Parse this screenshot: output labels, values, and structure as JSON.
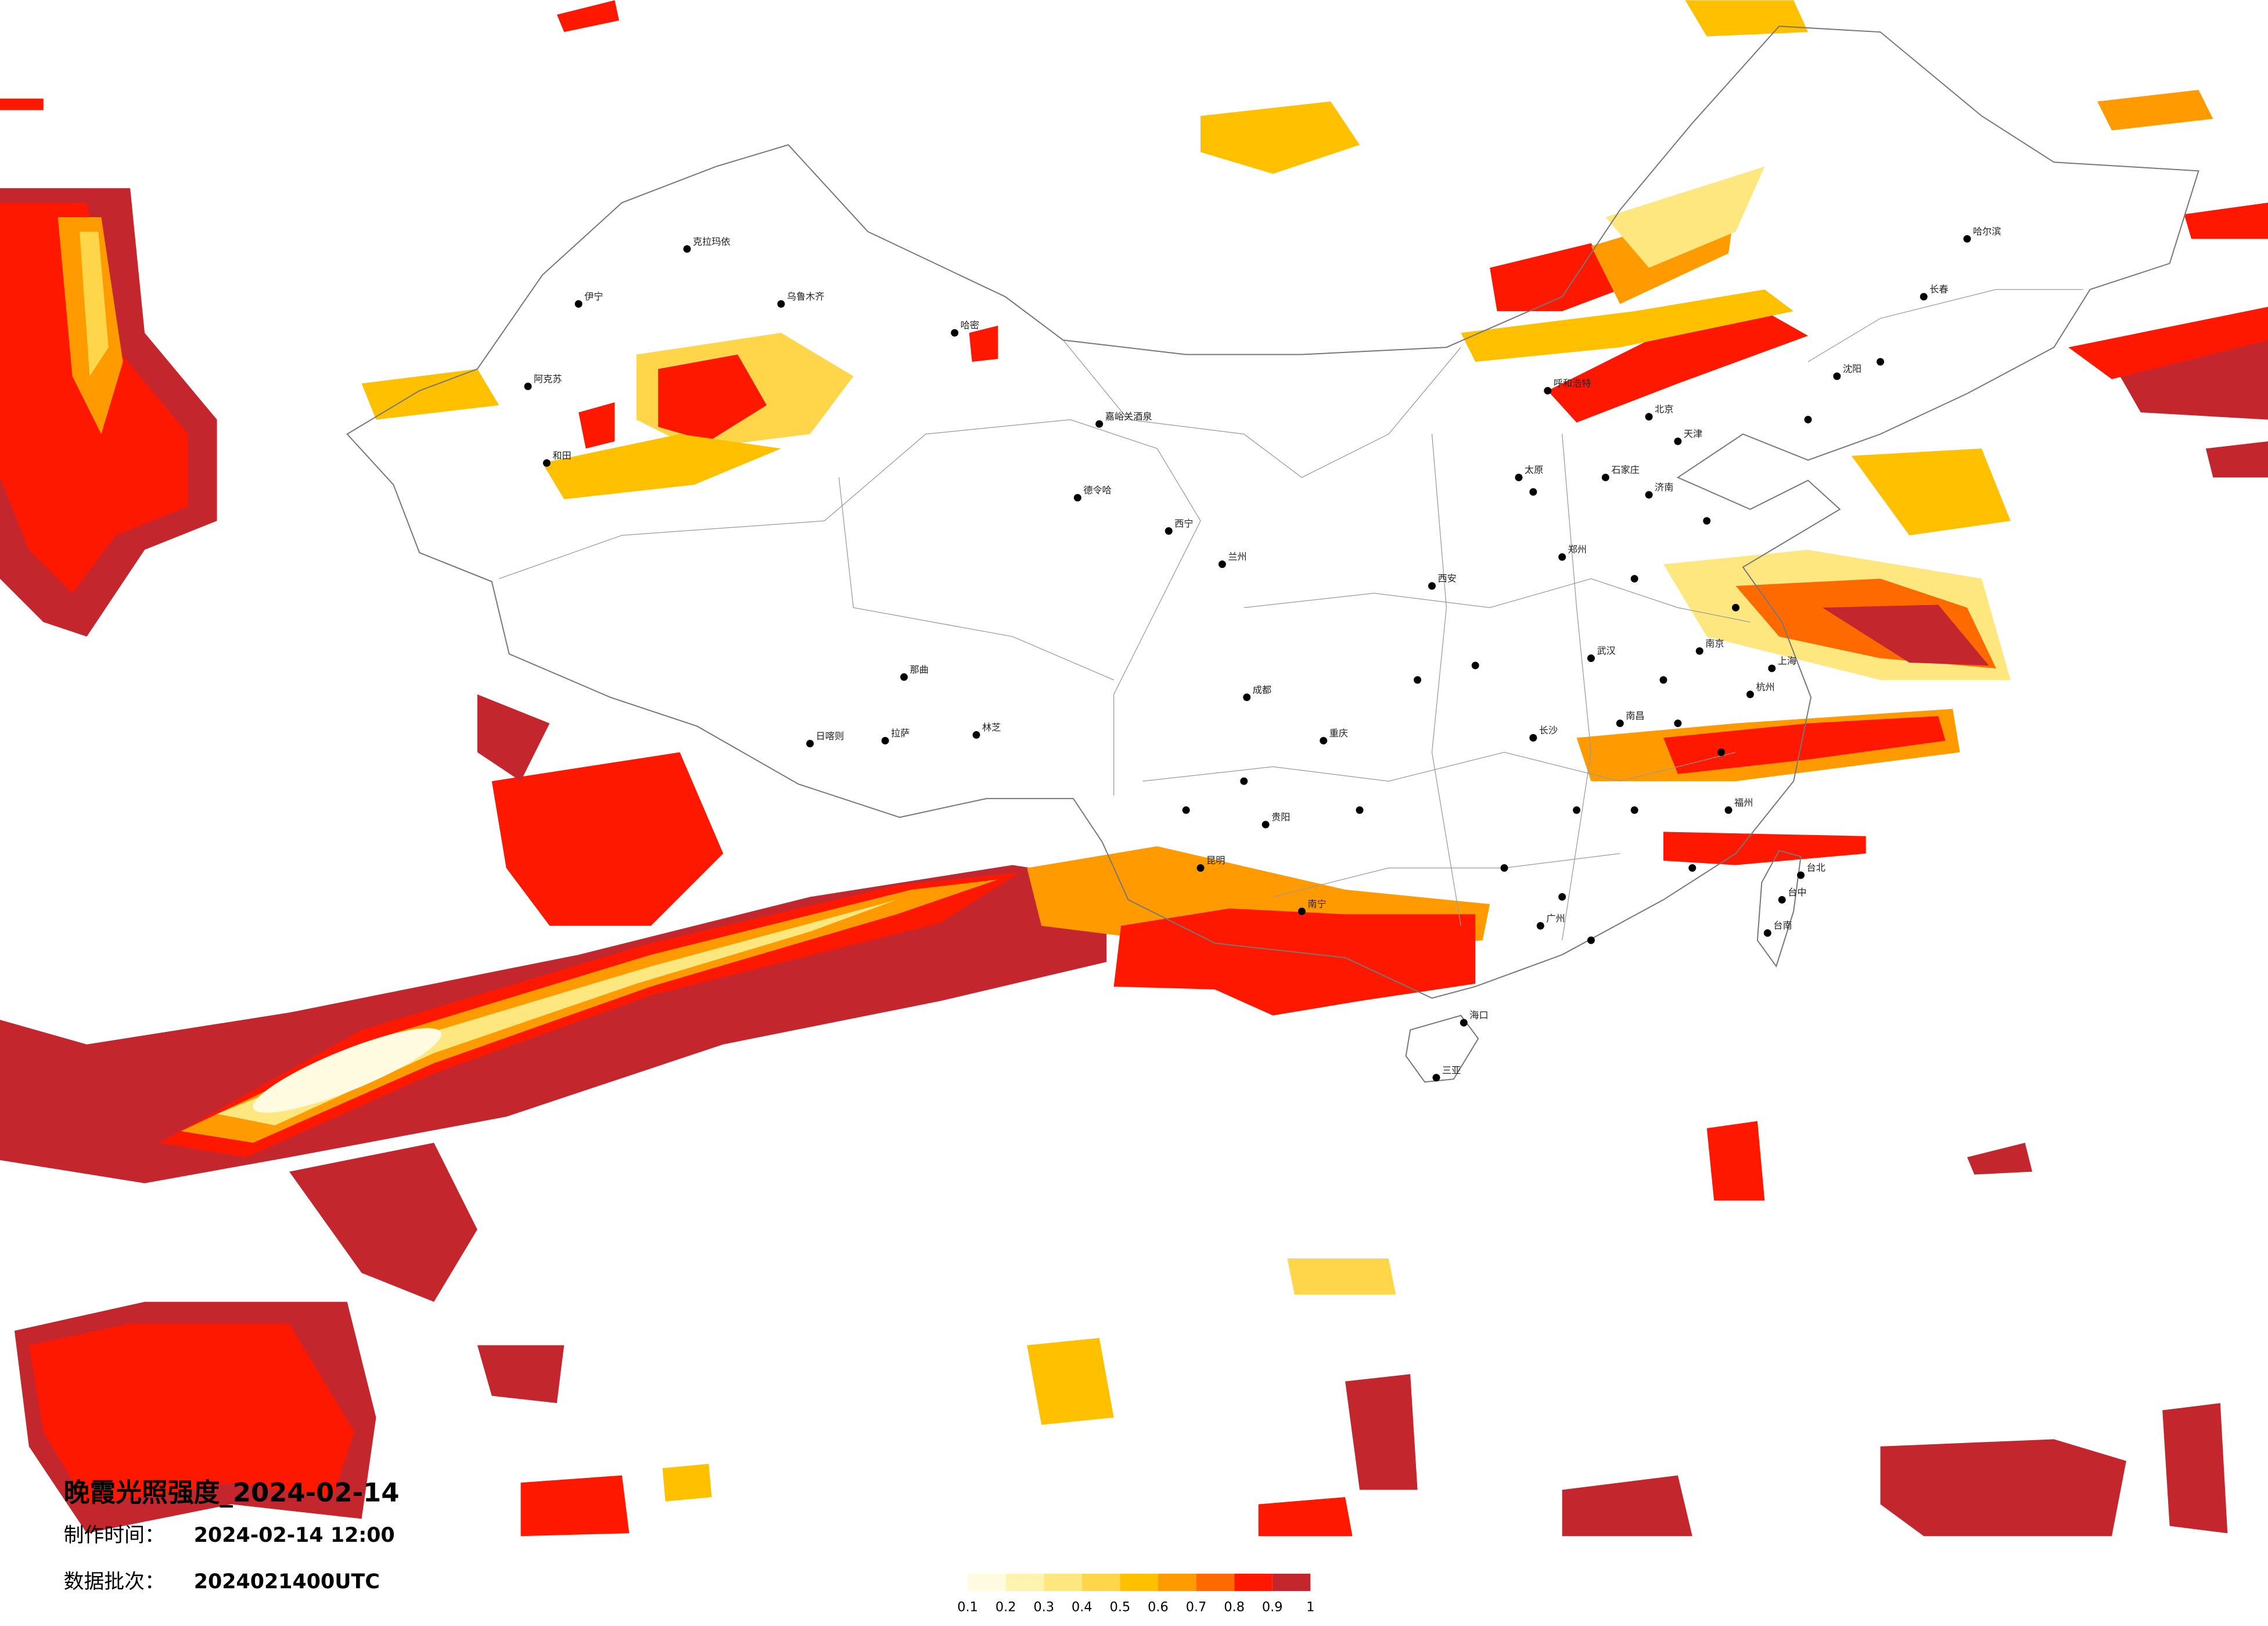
{
  "title": "晚霞光照强度_2024-02-14",
  "meta": {
    "made_label": "制作时间：",
    "made_value": "2024-02-14 12:00",
    "batch_label": "数据批次：",
    "batch_value": "2024021400UTC"
  },
  "legend": {
    "ticks": [
      0.1,
      0.2,
      0.3,
      0.4,
      0.5,
      0.6,
      0.7,
      0.8,
      0.9,
      1
    ],
    "colors": [
      "#fffbe0",
      "#fff3b0",
      "#ffe780",
      "#ffd64a",
      "#ffc000",
      "#ff9a00",
      "#ff6a00",
      "#ff1800",
      "#c4262e"
    ]
  },
  "cities": [
    "乌鲁木齐",
    "克拉玛依",
    "伊宁",
    "阿克苏",
    "和田",
    "哈密",
    "嘉峪关酒泉",
    "德令哈",
    "那曲",
    "拉萨",
    "日喀则",
    "林芝",
    "西宁",
    "兰州",
    "成都",
    "重庆",
    "昆明",
    "贵阳",
    "南宁",
    "广州",
    "海口",
    "三亚",
    "北京",
    "天津",
    "呼和浩特",
    "太原",
    "石家庄",
    "济南",
    "郑州",
    "西安",
    "武汉",
    "长沙",
    "南昌",
    "南京",
    "上海",
    "杭州",
    "福州",
    "台北",
    "台中",
    "台南",
    "沈阳",
    "长春",
    "哈尔滨"
  ]
}
